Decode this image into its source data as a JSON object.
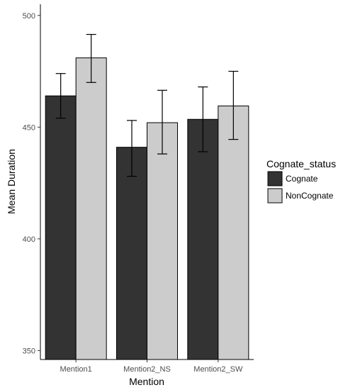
{
  "chart_data": {
    "type": "bar",
    "xlabel": "Mention",
    "ylabel": "Mean Duration",
    "ylim": [
      346,
      505
    ],
    "yticks": [
      350,
      400,
      450,
      500
    ],
    "categories": [
      "Mention1",
      "Mention2_NS",
      "Mention2_SW"
    ],
    "series": [
      {
        "name": "Cognate",
        "color": "#333333",
        "values": [
          464,
          441,
          453.5
        ],
        "err_low": [
          454,
          428,
          439
        ],
        "err_high": [
          474,
          453,
          468
        ]
      },
      {
        "name": "NonCognate",
        "color": "#cccccc",
        "values": [
          481,
          452,
          459.5
        ],
        "err_low": [
          470,
          438,
          444.5
        ],
        "err_high": [
          491.5,
          466.5,
          475
        ]
      }
    ],
    "legend": {
      "title": "Cognate_status",
      "position": "right"
    },
    "grid": false
  }
}
